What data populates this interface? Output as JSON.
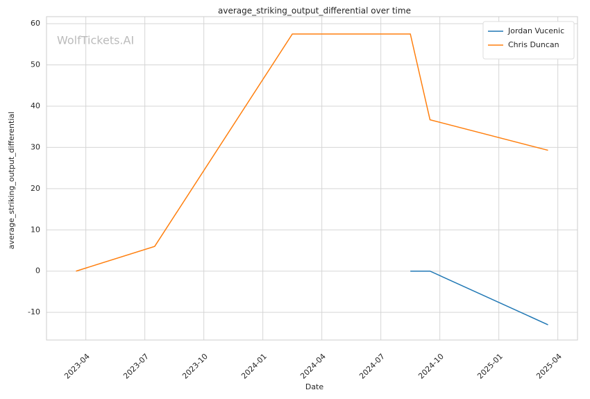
{
  "chart_data": {
    "type": "line",
    "title": "average_striking_output_differential over time",
    "xlabel": "Date",
    "ylabel": "average_striking_output_differential",
    "watermark": "WolfTickets.AI",
    "series": [
      {
        "name": "Jordan Vucenic",
        "color": "#1f77b4",
        "x": [
          "2024-08",
          "2024-09",
          "2025-03"
        ],
        "values": [
          0,
          0,
          -13
        ]
      },
      {
        "name": "Chris Duncan",
        "color": "#ff7f0e",
        "x": [
          "2023-03",
          "2023-07",
          "2024-02",
          "2024-08",
          "2024-09",
          "2025-03"
        ],
        "values": [
          0,
          6,
          57.5,
          57.5,
          36.7,
          29.3
        ]
      }
    ],
    "xlim": [
      "2023-02",
      "2025-05"
    ],
    "xticks": [
      "2023-04",
      "2023-07",
      "2023-10",
      "2024-01",
      "2024-04",
      "2024-07",
      "2024-10",
      "2025-01",
      "2025-04"
    ],
    "ylim": [
      -16.7,
      61.7
    ],
    "yticks": [
      -10,
      0,
      10,
      20,
      30,
      40,
      50,
      60
    ],
    "grid": true,
    "legend": "upper right"
  }
}
